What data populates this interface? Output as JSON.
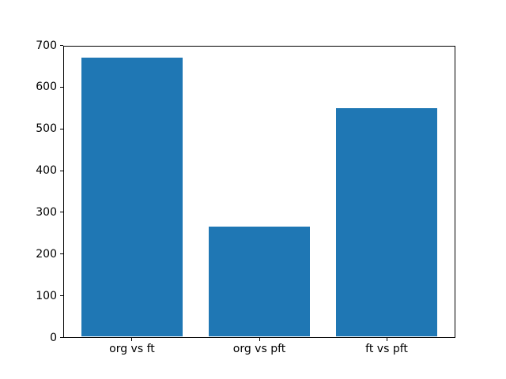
{
  "chart_data": {
    "type": "bar",
    "categories": [
      "org vs ft",
      "org vs pft",
      "ft vs pft"
    ],
    "values": [
      670,
      265,
      550
    ],
    "title": "",
    "xlabel": "",
    "ylabel": "",
    "ylim": [
      0,
      700
    ],
    "yticks": [
      0,
      100,
      200,
      300,
      400,
      500,
      600,
      700
    ],
    "bar_color": "#1f77b4",
    "bar_width_fraction": 0.8,
    "x_margin_fraction": 0.05,
    "grid": false,
    "legend": "none",
    "background_color": "#ffffff",
    "spine_color": "#000000",
    "tick_label_color": "#000000"
  }
}
